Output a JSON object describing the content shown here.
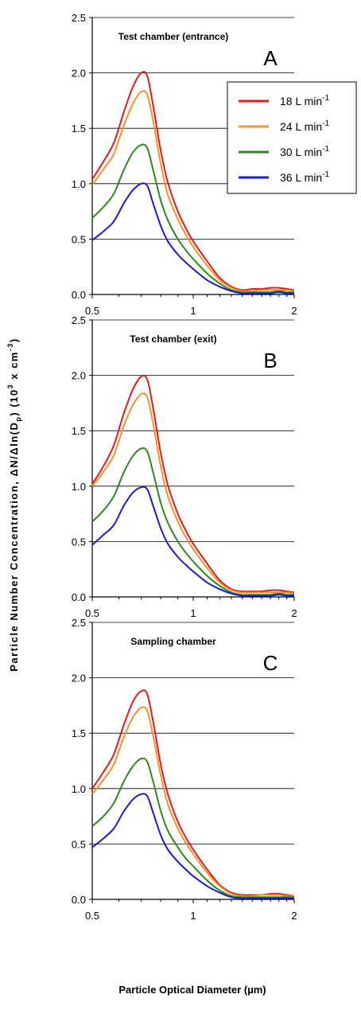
{
  "figure": {
    "ylabel_prefix": "Particle Number Concentration, ",
    "ylabel_formula": "ΔN/Δln(D",
    "ylabel_sub": "p",
    "ylabel_suffix_a": ")  (10",
    "ylabel_sup1": "3",
    "ylabel_suffix_b": " x cm",
    "ylabel_sup2": "-3",
    "ylabel_suffix_c": ")",
    "xlabel": "Particle Optical Diameter (µm)"
  },
  "colors": {
    "18": "#e41a1c",
    "24": "#f5922a",
    "30": "#2a8a1e",
    "36": "#1a1ad6"
  },
  "legend": {
    "unit": " L min",
    "unit_sup": "-1",
    "entries": [
      {
        "flow": "18",
        "color_key": "18"
      },
      {
        "flow": "24",
        "color_key": "24"
      },
      {
        "flow": "30",
        "color_key": "30"
      },
      {
        "flow": "36",
        "color_key": "36"
      }
    ]
  },
  "chart_data": [
    {
      "type": "line",
      "title": "Test chamber (entrance)",
      "panel_letter": "A",
      "x_scale": "log",
      "xlim": [
        0.5,
        2
      ],
      "ylim": [
        0,
        2.5
      ],
      "xticks": [
        "0.5",
        "1",
        "2"
      ],
      "yticks": [
        "0.0",
        "0.5",
        "1.0",
        "1.5",
        "2.0",
        "2.5"
      ],
      "grid": "horizontal",
      "x": [
        0.5,
        0.54,
        0.58,
        0.62,
        0.66,
        0.7,
        0.73,
        0.76,
        0.8,
        0.84,
        0.9,
        0.95,
        1.0,
        1.1,
        1.2,
        1.3,
        1.4,
        1.5,
        1.6,
        1.7,
        1.8,
        1.9,
        2.0
      ],
      "series": [
        {
          "name": "18 L min-1",
          "color_key": "18",
          "values": [
            1.04,
            1.2,
            1.37,
            1.64,
            1.87,
            2.0,
            1.97,
            1.7,
            1.3,
            1.01,
            0.75,
            0.6,
            0.48,
            0.3,
            0.15,
            0.07,
            0.04,
            0.05,
            0.05,
            0.06,
            0.06,
            0.05,
            0.04
          ]
        },
        {
          "name": "24 L min-1",
          "color_key": "24",
          "values": [
            0.99,
            1.13,
            1.27,
            1.52,
            1.72,
            1.83,
            1.8,
            1.56,
            1.18,
            0.9,
            0.68,
            0.54,
            0.43,
            0.26,
            0.13,
            0.06,
            0.03,
            0.03,
            0.04,
            0.04,
            0.04,
            0.04,
            0.03
          ]
        },
        {
          "name": "30 L min-1",
          "color_key": "30",
          "values": [
            0.69,
            0.79,
            0.91,
            1.12,
            1.28,
            1.35,
            1.32,
            1.12,
            0.85,
            0.67,
            0.5,
            0.4,
            0.32,
            0.19,
            0.1,
            0.04,
            0.02,
            0.02,
            0.02,
            0.02,
            0.03,
            0.02,
            0.02
          ]
        },
        {
          "name": "36 L min-1",
          "color_key": "36",
          "values": [
            0.49,
            0.57,
            0.66,
            0.82,
            0.94,
            1.0,
            0.98,
            0.82,
            0.62,
            0.48,
            0.36,
            0.29,
            0.23,
            0.13,
            0.07,
            0.03,
            0.01,
            0.01,
            0.01,
            0.01,
            0.02,
            0.01,
            0.01
          ]
        }
      ]
    },
    {
      "type": "line",
      "title": "Test chamber (exit)",
      "panel_letter": "B",
      "x_scale": "log",
      "xlim": [
        0.5,
        2
      ],
      "ylim": [
        0,
        2.5
      ],
      "xticks": [
        "0.5",
        "1",
        "2"
      ],
      "yticks": [
        "0.0",
        "0.5",
        "1.0",
        "1.5",
        "2.0",
        "2.5"
      ],
      "grid": "horizontal",
      "x": [
        0.5,
        0.54,
        0.58,
        0.62,
        0.66,
        0.7,
        0.73,
        0.76,
        0.8,
        0.84,
        0.9,
        0.95,
        1.0,
        1.1,
        1.2,
        1.3,
        1.4,
        1.5,
        1.6,
        1.7,
        1.8,
        1.9,
        2.0
      ],
      "series": [
        {
          "name": "18 L min-1",
          "color_key": "18",
          "values": [
            1.02,
            1.18,
            1.37,
            1.65,
            1.87,
            1.99,
            1.96,
            1.7,
            1.3,
            1.01,
            0.75,
            0.6,
            0.48,
            0.3,
            0.15,
            0.07,
            0.05,
            0.05,
            0.05,
            0.06,
            0.06,
            0.05,
            0.04
          ]
        },
        {
          "name": "24 L min-1",
          "color_key": "24",
          "values": [
            1.0,
            1.13,
            1.28,
            1.54,
            1.73,
            1.83,
            1.8,
            1.56,
            1.18,
            0.91,
            0.68,
            0.54,
            0.43,
            0.26,
            0.13,
            0.06,
            0.04,
            0.04,
            0.04,
            0.04,
            0.04,
            0.04,
            0.03
          ]
        },
        {
          "name": "30 L min-1",
          "color_key": "30",
          "values": [
            0.68,
            0.78,
            0.91,
            1.12,
            1.27,
            1.34,
            1.31,
            1.12,
            0.85,
            0.67,
            0.5,
            0.4,
            0.32,
            0.19,
            0.1,
            0.04,
            0.02,
            0.02,
            0.02,
            0.02,
            0.03,
            0.02,
            0.02
          ]
        },
        {
          "name": "36 L min-1",
          "color_key": "36",
          "values": [
            0.47,
            0.56,
            0.65,
            0.82,
            0.94,
            0.99,
            0.97,
            0.82,
            0.62,
            0.48,
            0.36,
            0.29,
            0.23,
            0.13,
            0.07,
            0.03,
            0.01,
            0.01,
            0.01,
            0.01,
            0.02,
            0.01,
            0.01
          ]
        }
      ]
    },
    {
      "type": "line",
      "title": "Sampling chamber",
      "panel_letter": "C",
      "x_scale": "log",
      "xlim": [
        0.5,
        2
      ],
      "ylim": [
        0,
        2.5
      ],
      "xticks": [
        "0.5",
        "1",
        "2"
      ],
      "yticks": [
        "0.0",
        "0.5",
        "1.0",
        "1.5",
        "2.0",
        "2.5"
      ],
      "grid": "horizontal",
      "x": [
        0.5,
        0.54,
        0.58,
        0.62,
        0.66,
        0.7,
        0.73,
        0.76,
        0.8,
        0.84,
        0.9,
        0.95,
        1.0,
        1.1,
        1.2,
        1.3,
        1.4,
        1.5,
        1.6,
        1.7,
        1.8,
        1.9,
        2.0
      ],
      "series": [
        {
          "name": "18 L min-1",
          "color_key": "18",
          "values": [
            1.0,
            1.15,
            1.31,
            1.57,
            1.78,
            1.88,
            1.85,
            1.6,
            1.22,
            0.95,
            0.7,
            0.56,
            0.45,
            0.27,
            0.13,
            0.06,
            0.04,
            0.04,
            0.04,
            0.05,
            0.05,
            0.04,
            0.03
          ]
        },
        {
          "name": "24 L min-1",
          "color_key": "24",
          "values": [
            0.95,
            1.08,
            1.22,
            1.46,
            1.64,
            1.73,
            1.7,
            1.47,
            1.12,
            0.86,
            0.64,
            0.51,
            0.41,
            0.24,
            0.12,
            0.05,
            0.03,
            0.03,
            0.04,
            0.04,
            0.04,
            0.03,
            0.03
          ]
        },
        {
          "name": "30 L min-1",
          "color_key": "30",
          "values": [
            0.66,
            0.75,
            0.87,
            1.06,
            1.2,
            1.27,
            1.24,
            1.06,
            0.8,
            0.62,
            0.47,
            0.37,
            0.3,
            0.17,
            0.08,
            0.03,
            0.02,
            0.02,
            0.02,
            0.02,
            0.02,
            0.02,
            0.02
          ]
        },
        {
          "name": "36 L min-1",
          "color_key": "36",
          "values": [
            0.47,
            0.55,
            0.64,
            0.79,
            0.9,
            0.95,
            0.93,
            0.78,
            0.58,
            0.45,
            0.34,
            0.27,
            0.21,
            0.12,
            0.06,
            0.02,
            0.01,
            0.01,
            0.01,
            0.01,
            0.01,
            0.01,
            0.01
          ]
        }
      ]
    }
  ]
}
